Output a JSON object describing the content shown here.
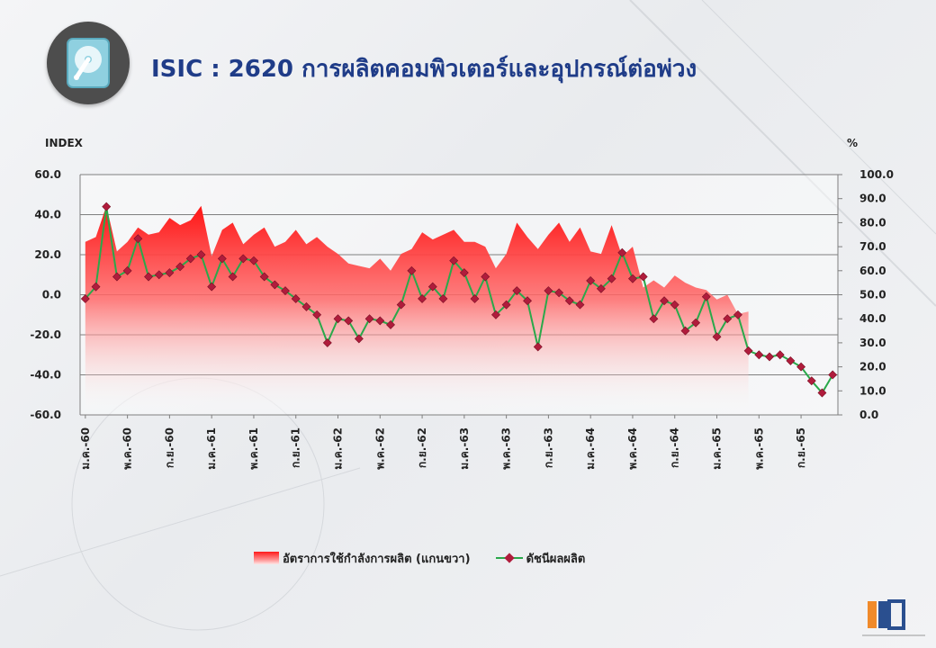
{
  "page": {
    "title": "ISIC : 2620 การผลิตคอมพิวเตอร์และอุปกรณ์ต่อพ่วง",
    "header_icon": "hard-disk-icon",
    "logo_icon": "oie-logo-icon",
    "colors": {
      "title": "#1f3c88",
      "area_top": "#ff1a1a",
      "area_bottom": "#ffe5e5",
      "line": "#2aa84a",
      "marker": "#b01c3c"
    }
  },
  "chart_data": {
    "type": "line",
    "left_axis": {
      "label": "INDEX",
      "range": [
        -60,
        60
      ],
      "ticks": [
        "60.0",
        "40.0",
        "20.0",
        "0.0",
        "-20.0",
        "-40.0",
        "-60.0"
      ]
    },
    "right_axis": {
      "label": "%",
      "range": [
        0,
        100
      ],
      "ticks": [
        "100.0",
        "90.0",
        "80.0",
        "70.0",
        "60.0",
        "50.0",
        "40.0",
        "30.0",
        "20.0",
        "10.0",
        "0.0"
      ]
    },
    "x_tick_labels": [
      "ม.ค.-60",
      "พ.ค.-60",
      "ก.ย.-60",
      "ม.ค.-61",
      "พ.ค.-61",
      "ก.ย.-61",
      "ม.ค.-62",
      "พ.ค.-62",
      "ก.ย.-62",
      "ม.ค.-63",
      "พ.ค.-63",
      "ก.ย.-63",
      "ม.ค.-64",
      "พ.ค.-64",
      "ก.ย.-64",
      "ม.ค.-65",
      "พ.ค.-65",
      "ก.ย.-65"
    ],
    "tick_every": 4,
    "grid": true,
    "legend_position": "bottom",
    "series": [
      {
        "name": "อัตราการใช้กำลังการผลิต (แกนขวา)",
        "type": "area",
        "axis": "right",
        "values": [
          72,
          74,
          87,
          68,
          72,
          78,
          75,
          76,
          82,
          79,
          81,
          87,
          66,
          77,
          80,
          71,
          75,
          78,
          70,
          72,
          77,
          71,
          74,
          70,
          67,
          63,
          62,
          61,
          65,
          60,
          67,
          69,
          76,
          73,
          75,
          77,
          72,
          72,
          70,
          61,
          67,
          80,
          74,
          69,
          75,
          80,
          72,
          78,
          68,
          67,
          79,
          66,
          70,
          53,
          56,
          53,
          58,
          55,
          53,
          52,
          48,
          50,
          42,
          43
        ]
      },
      {
        "name": "ดัชนีผลผลิต",
        "type": "line",
        "axis": "left",
        "values": [
          -2,
          4,
          44,
          9,
          12,
          28,
          9,
          10,
          11,
          14,
          18,
          20,
          4,
          18,
          9,
          18,
          17,
          9,
          5,
          2,
          -2,
          -6,
          -10,
          -24,
          -12,
          -13,
          -22,
          -12,
          -13,
          -15,
          -5,
          12,
          -2,
          4,
          -2,
          17,
          11,
          -2,
          9,
          -10,
          -5,
          2,
          -3,
          -26,
          2,
          1,
          -3,
          -5,
          7,
          3,
          8,
          21,
          8,
          9,
          -12,
          -3,
          -5,
          -18,
          -14,
          -1,
          -21,
          -12,
          -10,
          -28,
          -30,
          -31,
          -30,
          -33,
          -36,
          -43,
          -49,
          -40
        ]
      }
    ]
  }
}
